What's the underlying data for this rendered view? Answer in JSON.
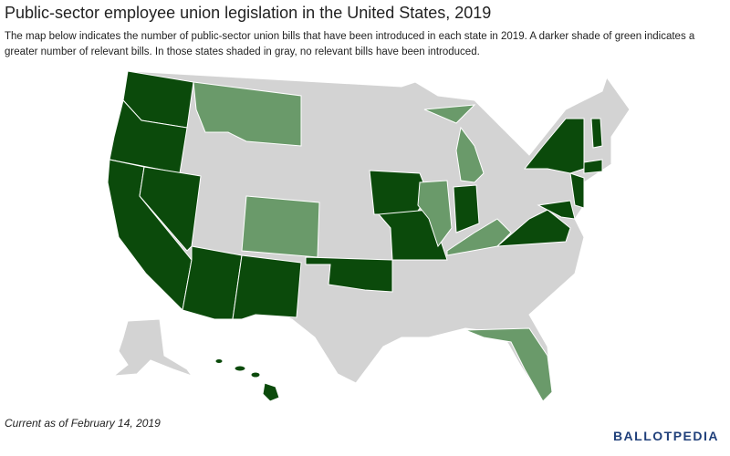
{
  "header": {
    "title": "Public-sector employee union legislation in the United States, 2019",
    "description": "The map below indicates the number of public-sector union bills that have been introduced in each state in 2019. A darker shade of green indicates a greater number of relevant bills. In those states shaded in gray, no relevant bills have been introduced."
  },
  "footer": {
    "note": "Current as of February 14, 2019",
    "logo": "BALLOTPEDIA"
  }
}
